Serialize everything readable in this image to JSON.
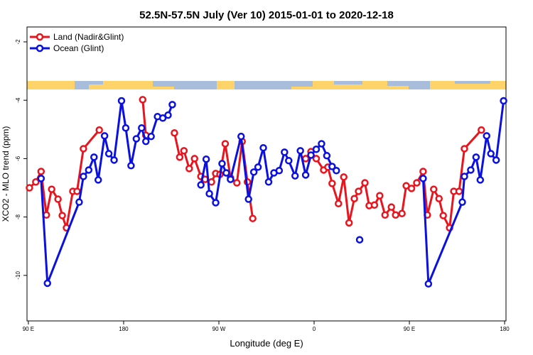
{
  "chart_data": {
    "type": "line",
    "title": "52.5N-57.5N July (Ver 10)   2015-01-01 to 2020-12-18",
    "x_label": "Longitude (deg E)",
    "y_label": "XCO2 - MLO trend (ppm)",
    "xlim": [
      88.7,
      541.3
    ],
    "ylim": [
      -11.56,
      -1.49
    ],
    "xticks": [
      {
        "value": 90,
        "label": "90 E"
      },
      180,
      {
        "value": 270,
        "label": "90 W"
      },
      {
        "value": 360,
        "label": "0"
      },
      {
        "value": 450,
        "label": "90 E"
      },
      {
        "value": 540,
        "label": "180"
      }
    ],
    "yticks": [
      -2,
      -4,
      -6,
      -8,
      -10
    ],
    "legend": "top-left",
    "series": [
      {
        "name": "Land (Nadir&Glint)",
        "color": "#e8141e",
        "x": [
          91,
          97,
          102,
          107,
          112,
          118,
          122,
          126,
          132,
          136,
          142,
          157,
          null,
          198,
          201,
          null,
          228,
          233,
          237,
          242,
          247,
          253,
          257,
          263,
          267,
          271,
          276,
          281,
          287,
          292,
          297,
          302,
          null,
          352,
          357,
          362,
          369,
          373,
          377,
          383,
          388,
          393,
          398,
          402,
          408,
          412,
          417,
          422,
          427,
          433,
          437,
          443,
          447,
          452,
          457,
          463,
          467,
          473,
          478,
          482,
          488,
          492,
          497,
          502,
          518
        ],
        "values": [
          -7.0,
          -6.8,
          -6.44,
          -7.93,
          -7.05,
          -7.39,
          -7.95,
          -8.37,
          -7.12,
          -7.12,
          -5.66,
          -5.02,
          null,
          -3.98,
          -5.2,
          null,
          -5.12,
          -5.95,
          -5.73,
          -6.34,
          -6.0,
          -6.61,
          -6.71,
          -6.8,
          -6.51,
          -6.54,
          -5.49,
          -6.66,
          -6.83,
          -5.41,
          -6.8,
          -8.05,
          null,
          -6.0,
          -5.76,
          -6.0,
          -6.39,
          -6.29,
          -6.85,
          -7.54,
          -6.63,
          -8.2,
          -7.37,
          -7.12,
          -6.83,
          -7.61,
          -7.59,
          -7.27,
          -7.93,
          -7.66,
          -7.93,
          -7.88,
          -6.93,
          -7.02,
          -6.83,
          -6.44,
          -7.93,
          -7.05,
          -7.37,
          -7.95,
          -8.37,
          -7.12,
          -7.12,
          -5.66,
          -5.02
        ]
      },
      {
        "name": "Ocean (Glint)",
        "color": "#0a10e0",
        "x": [
          102,
          108,
          138,
          142,
          147,
          152,
          156,
          162,
          166,
          171,
          178,
          182,
          187,
          192,
          197,
          201,
          206,
          212,
          217,
          222,
          226,
          null,
          253,
          258,
          261,
          267,
          273,
          277,
          281,
          291,
          298,
          303,
          307,
          312,
          317,
          322,
          327,
          332,
          336,
          342,
          347,
          352,
          357,
          362,
          367,
          372,
          377,
          381,
          null,
          403,
          null,
          463,
          468,
          500,
          502,
          508,
          513,
          517,
          523,
          527,
          532,
          539
        ],
        "values": [
          -6.68,
          -10.27,
          -7.49,
          -6.61,
          -6.39,
          -5.95,
          -6.73,
          -5.22,
          -5.83,
          -6.05,
          -4.02,
          -4.95,
          -6.24,
          -5.32,
          -4.95,
          -5.41,
          -5.24,
          -4.56,
          -4.61,
          -4.51,
          -4.15,
          null,
          -6.9,
          -6.02,
          -7.2,
          -7.51,
          -6.17,
          -6.49,
          -6.71,
          -5.24,
          -7.39,
          -6.46,
          -6.29,
          -5.63,
          -6.8,
          -6.49,
          -6.41,
          -5.78,
          -6.07,
          -6.59,
          -5.73,
          -6.56,
          -5.88,
          -5.68,
          -5.49,
          -5.9,
          -6.27,
          -6.41,
          null,
          -8.78,
          null,
          -6.68,
          -10.29,
          -7.49,
          -6.61,
          -6.39,
          -5.95,
          -6.73,
          -5.22,
          -5.83,
          -6.05,
          -4.02
        ]
      }
    ]
  }
}
